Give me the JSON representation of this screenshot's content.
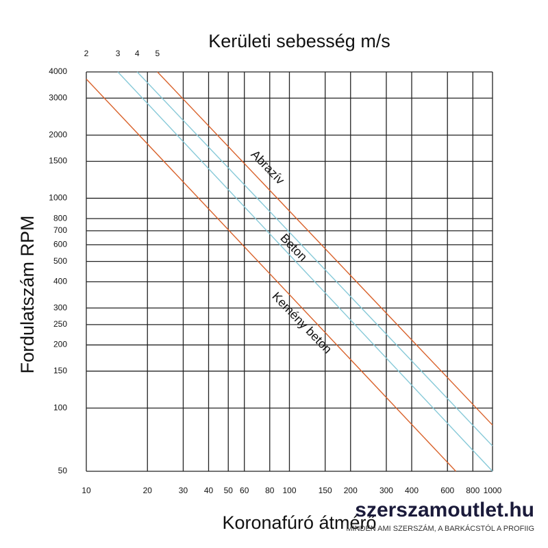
{
  "chart_data": {
    "type": "line",
    "title": "Kerületi sebesség m/s",
    "xlabel": "Koronafúró átmérő",
    "ylabel": "Fordulatszám RPM",
    "xscale": "log",
    "yscale": "log",
    "grid": true,
    "xlim": [
      10,
      1000
    ],
    "ylim": [
      50,
      4000
    ],
    "xticks": [
      10,
      20,
      30,
      40,
      50,
      60,
      80,
      100,
      150,
      200,
      300,
      400,
      600,
      800,
      1000
    ],
    "yticks": [
      50,
      100,
      150,
      200,
      250,
      300,
      400,
      500,
      600,
      700,
      800,
      1000,
      1500,
      2000,
      3000,
      4000
    ],
    "series": [
      {
        "speed": 2,
        "color": "#d9622b",
        "x": [
          10,
          660
        ],
        "values": [
          3700,
          50
        ]
      },
      {
        "speed": 3,
        "color": "#86c9d8",
        "x": [
          14.3,
          1000
        ],
        "values": [
          4000,
          50
        ]
      },
      {
        "speed": 4,
        "color": "#86c9d8",
        "x": [
          17.8,
          1000
        ],
        "values": [
          4000,
          66
        ]
      },
      {
        "speed": 5,
        "color": "#d9622b",
        "x": [
          22.4,
          1000
        ],
        "values": [
          4000,
          83
        ]
      }
    ],
    "annotations": [
      "Abrazív",
      "Beton",
      "Kemény beton"
    ]
  },
  "watermark": {
    "site": "szerszamoutlet.hu",
    "tagline": "MINDEN AMI SZERSZÁM, A BARKÁCSTÓL A PROFIIG"
  }
}
